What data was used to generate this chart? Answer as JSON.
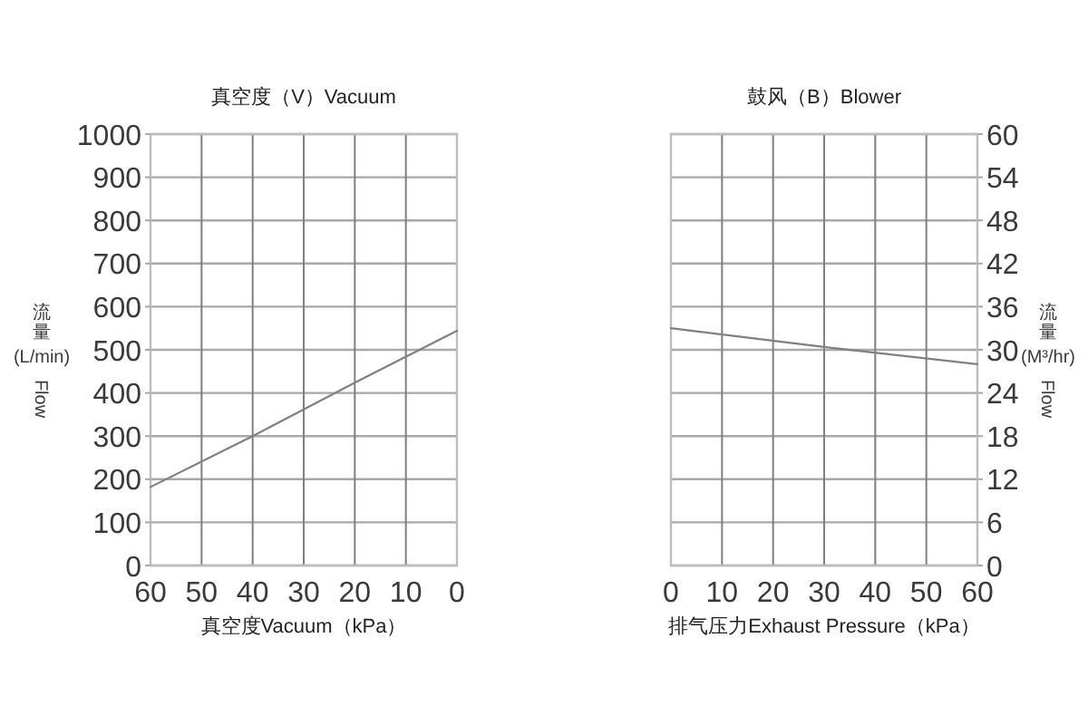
{
  "chart_data": [
    {
      "type": "line",
      "title": "真空度（V）Vacuum",
      "xlabel": "真空度Vacuum（kPa）",
      "ylabel": "流量\n(L/min)\nFlow",
      "x": [
        60,
        40,
        20,
        0
      ],
      "series": [
        {
          "color": "#808080",
          "values": [
            182,
            300,
            424,
            544
          ]
        }
      ],
      "xlim": [
        60,
        0
      ],
      "xticks": [
        60,
        50,
        40,
        30,
        20,
        10,
        0
      ],
      "ylim": [
        0,
        1000
      ],
      "yticks": [
        0,
        100,
        200,
        300,
        400,
        500,
        600,
        700,
        800,
        900,
        1000
      ],
      "grid": true
    },
    {
      "type": "line",
      "title": "鼓风（B）Blower",
      "xlabel": "排气压力Exhaust Pressure（kPa）",
      "y2label": "流量\n(M³/hr)\nFlow",
      "x": [
        0,
        30,
        60
      ],
      "series": [
        {
          "axis": "y2",
          "color": "#808080",
          "values": [
            33,
            30.4,
            28
          ]
        }
      ],
      "xlim": [
        0,
        60
      ],
      "xticks": [
        0,
        10,
        20,
        30,
        40,
        50,
        60
      ],
      "y2lim": [
        0,
        60
      ],
      "y2ticks": [
        0,
        6,
        12,
        18,
        24,
        30,
        36,
        42,
        48,
        54,
        60
      ],
      "grid": true
    }
  ]
}
